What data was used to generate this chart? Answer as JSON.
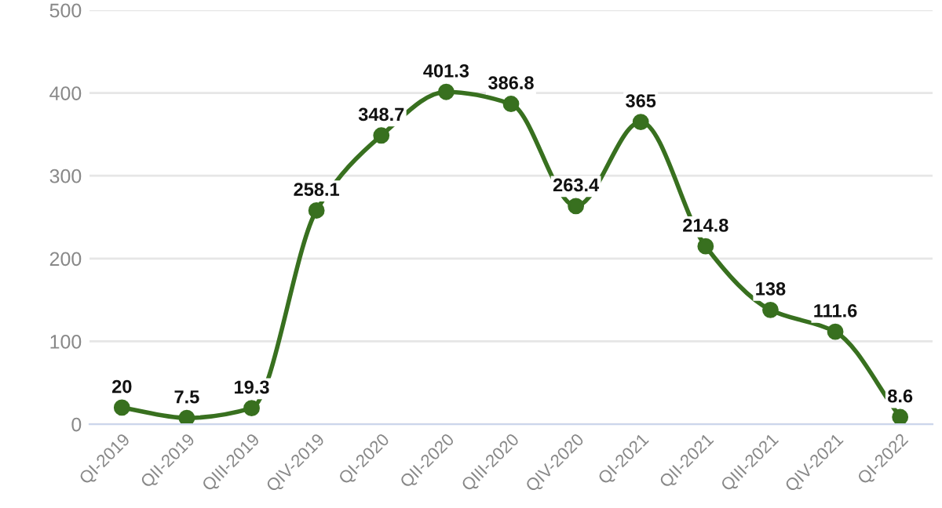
{
  "chart_data": {
    "type": "line",
    "categories": [
      "QI-2019",
      "QII-2019",
      "QIII-2019",
      "QIV-2019",
      "QI-2020",
      "QII-2020",
      "QIII-2020",
      "QIV-2020",
      "QI-2021",
      "QII-2021",
      "QIII-2021",
      "QIV-2021",
      "QI-2022"
    ],
    "series": [
      {
        "color": "#38701f",
        "values": [
          20,
          7.5,
          19.3,
          258.1,
          348.7,
          401.3,
          386.8,
          263.4,
          365,
          214.8,
          138,
          111.6,
          8.6
        ]
      }
    ],
    "ylim": [
      0,
      500
    ],
    "yticks": [
      0,
      100,
      200,
      300,
      400,
      500
    ],
    "grid": "y",
    "marker": "circle",
    "data_labels": true,
    "legend": false
  }
}
